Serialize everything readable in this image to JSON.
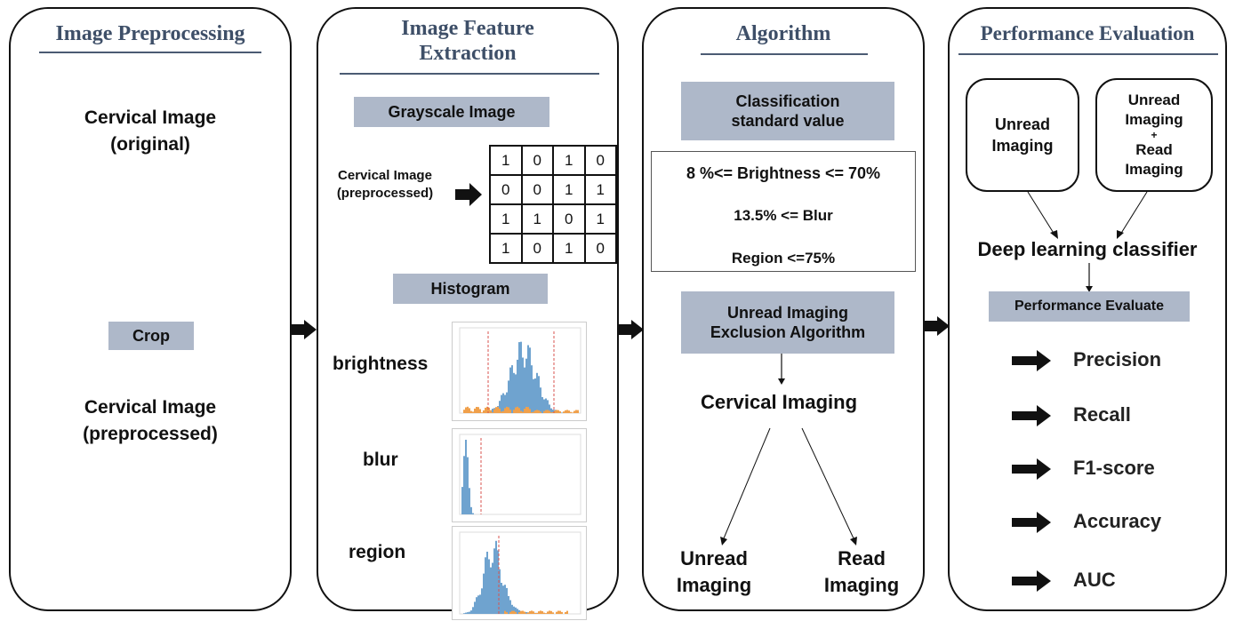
{
  "panels": {
    "preprocessing": {
      "title": "Image Preprocessing",
      "original_line1": "Cervical Image",
      "original_line2": "(original)",
      "crop_label": "Crop",
      "pre_line1": "Cervical Image",
      "pre_line2": "(preprocessed)"
    },
    "feature_extraction": {
      "title_line1": "Image Feature",
      "title_line2": "Extraction",
      "grayscale_label": "Grayscale Image",
      "input_line1": "Cervical Image",
      "input_line2": "(preprocessed)",
      "matrix": [
        [
          "1",
          "0",
          "1",
          "0"
        ],
        [
          "0",
          "0",
          "1",
          "1"
        ],
        [
          "1",
          "1",
          "0",
          "1"
        ],
        [
          "1",
          "0",
          "1",
          "0"
        ]
      ],
      "histogram_label": "Histogram",
      "hist_brightness": "brightness",
      "hist_blur": "blur",
      "hist_region": "region"
    },
    "algorithm": {
      "title": "Algorithm",
      "std_line1": "Classification",
      "std_line2": "standard value",
      "rule1": "8 %<= Brightness <= 70%",
      "rule2": "13.5% <= Blur",
      "rule3": "Region <=75%",
      "excl_line1": "Unread Imaging",
      "excl_line2": "Exclusion Algorithm",
      "cervical_imaging": "Cervical Imaging",
      "unread_line1": "Unread",
      "unread_line2": "Imaging",
      "read_line1": "Read",
      "read_line2": "Imaging"
    },
    "evaluation": {
      "title": "Performance Evaluation",
      "box1_line1": "Unread",
      "box1_line2": "Imaging",
      "box2_line1": "Unread",
      "box2_line2": "Imaging",
      "box2_plus": "+",
      "box2_line3": "Read",
      "box2_line4": "Imaging",
      "classifier": "Deep learning classifier",
      "evaluate_label": "Performance Evaluate",
      "metrics": [
        "Precision",
        "Recall",
        "F1-score",
        "Accuracy",
        "AUC"
      ]
    }
  }
}
